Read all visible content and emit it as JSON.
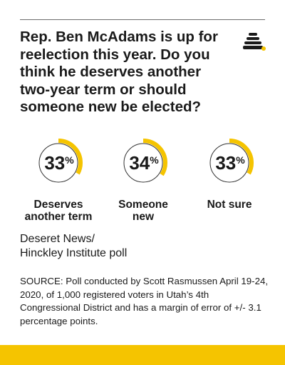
{
  "question": "Rep. Ben McAdams is up for reelection this year. Do you think he deserves another two-year term or should someone new be elected?",
  "attribution_lines": [
    "Deseret News/",
    "Hinckley Institute poll"
  ],
  "source": "SOURCE: Poll conducted by Scott Rasmussen April 19-24, 2020, of 1,000 registered voters in Utah’s 4th Congressional District and has a margin of error of +/- 3.1 percentage points.",
  "colors": {
    "accent": "#f5c400",
    "text": "#1a1a1a",
    "ring_outline": "#333333",
    "rule": "#6d6d6d"
  },
  "icons": {
    "logo": "beehive-icon"
  },
  "chart_data": {
    "type": "pie",
    "unit": "%",
    "categories": [
      "Deserves another term",
      "Someone new",
      "Not sure"
    ],
    "values": [
      33,
      34,
      33
    ],
    "labels": [
      [
        "Deserves",
        "another term"
      ],
      [
        "Someone",
        "new"
      ],
      [
        "Not sure"
      ]
    ]
  }
}
